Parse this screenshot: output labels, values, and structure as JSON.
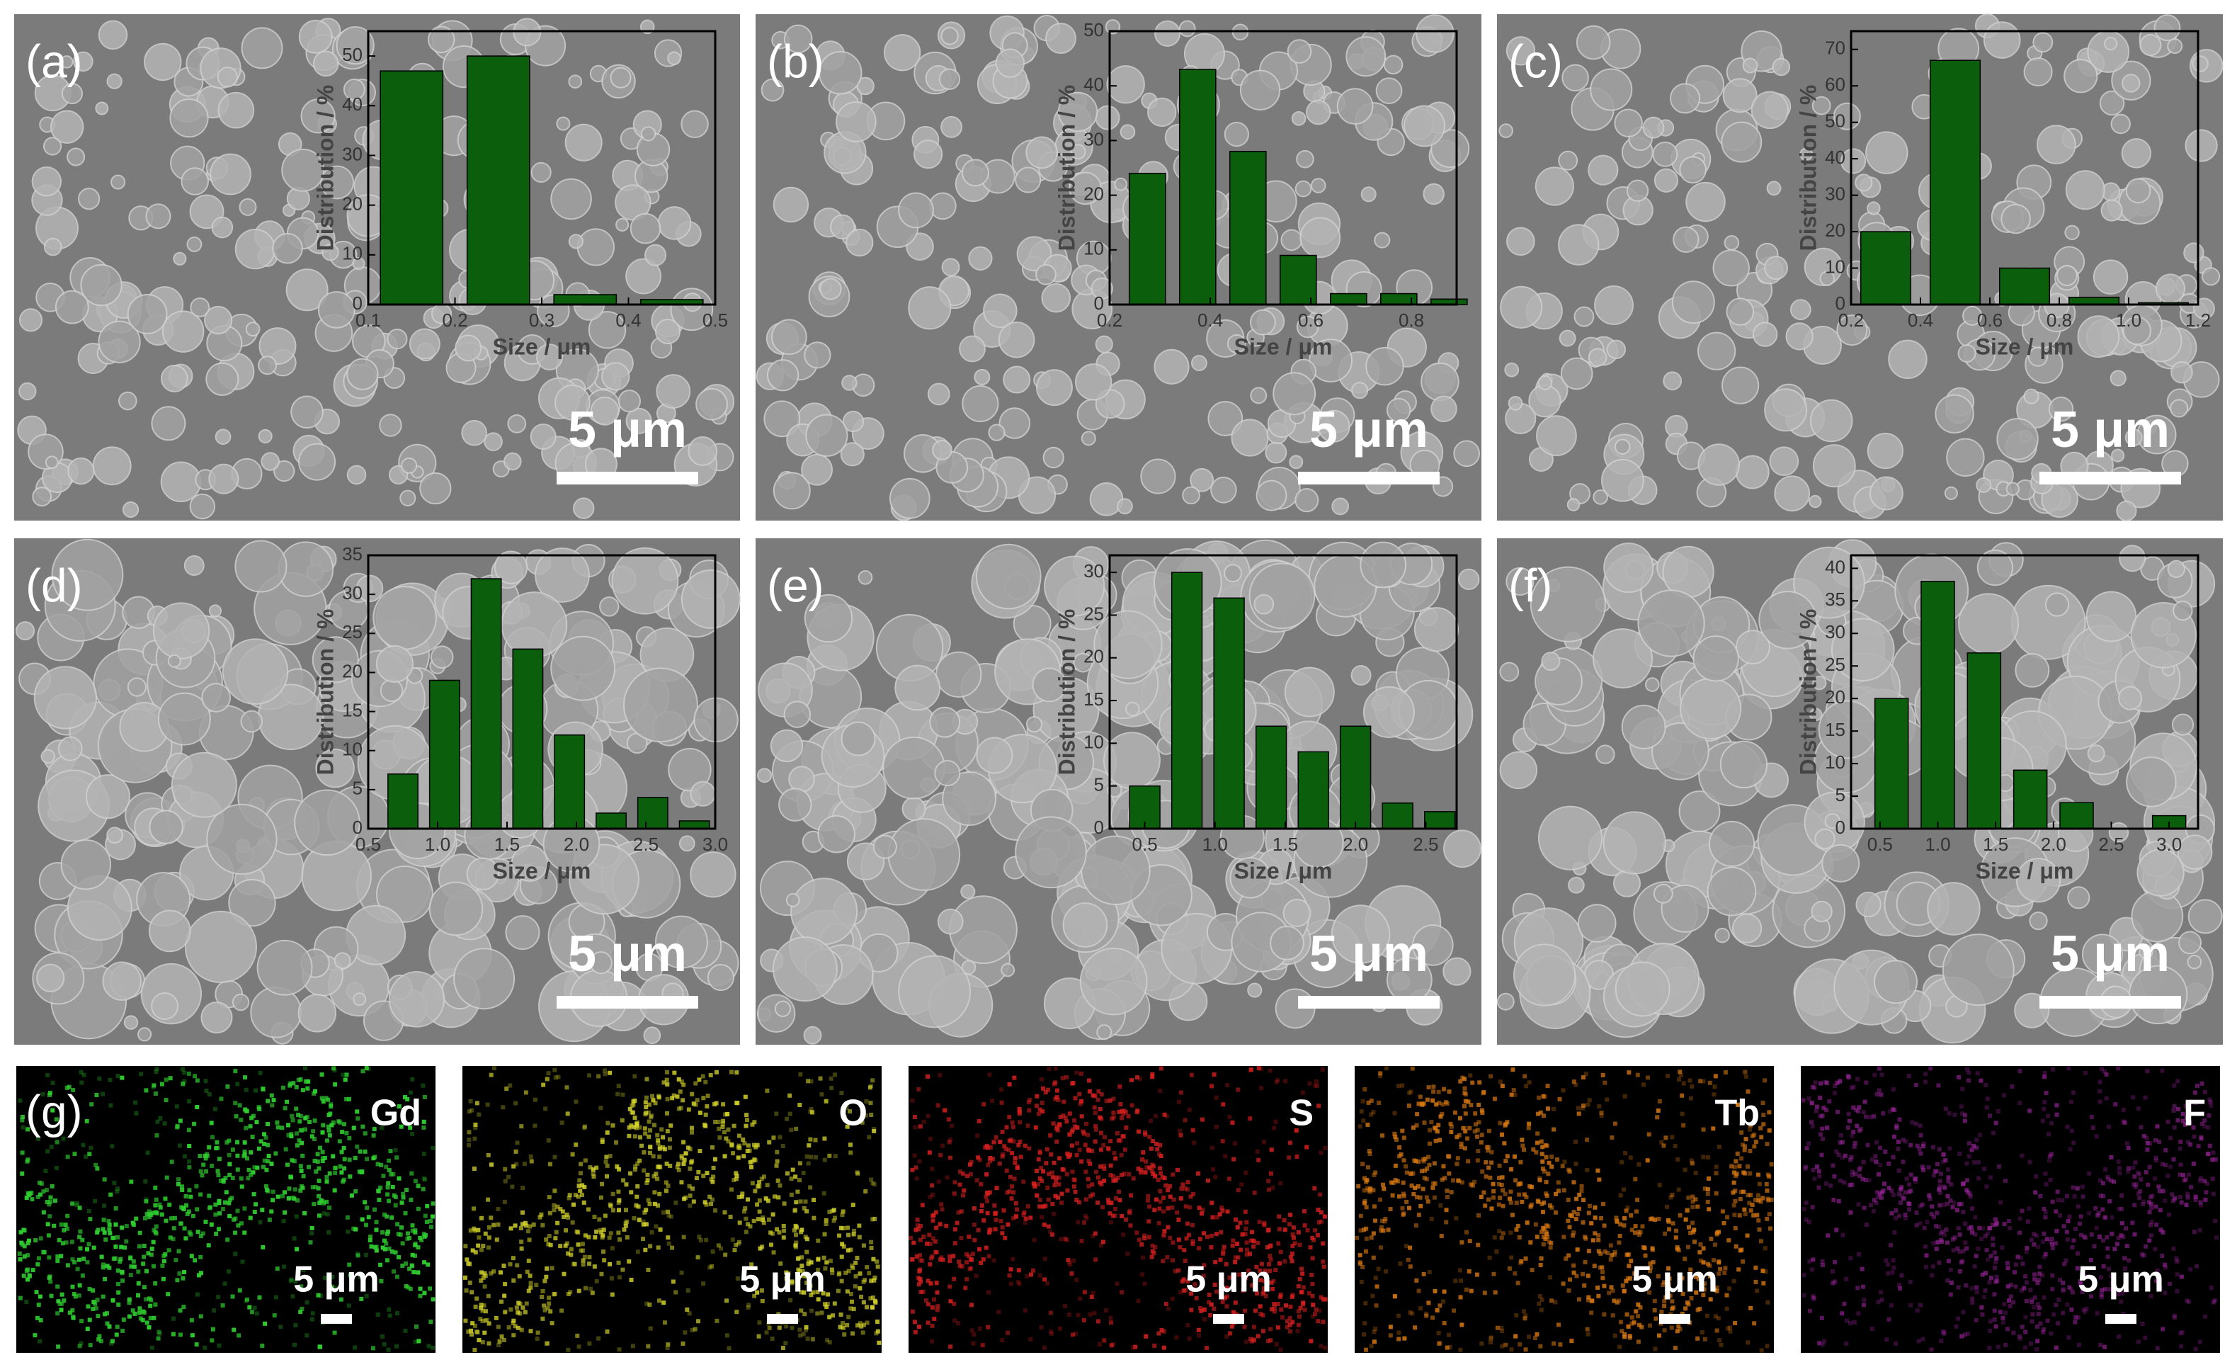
{
  "chart_data": [
    {
      "type": "bar",
      "label": "(a)",
      "scale_bar": "5 μm",
      "xlabel": "Size / μm",
      "ylabel": "Distribution / %",
      "color": "#0b5e0b",
      "x": [
        0.15,
        0.25,
        0.35,
        0.45
      ],
      "values": [
        47,
        50,
        2,
        1
      ],
      "xlim": [
        0.1,
        0.5
      ],
      "xticks": [
        0.1,
        0.2,
        0.3,
        0.4,
        0.5
      ],
      "ylim": [
        0,
        55
      ],
      "yticks": [
        0,
        10,
        20,
        30,
        40,
        50
      ]
    },
    {
      "type": "bar",
      "label": "(b)",
      "scale_bar": "5 μm",
      "xlabel": "Size / μm",
      "ylabel": "Distribution / %",
      "color": "#0b5e0b",
      "x": [
        0.275,
        0.375,
        0.475,
        0.575,
        0.675,
        0.775,
        0.875
      ],
      "values": [
        24,
        43,
        28,
        9,
        2,
        2,
        1
      ],
      "xlim": [
        0.2,
        0.89
      ],
      "xticks": [
        0.2,
        0.4,
        0.6,
        0.8
      ],
      "ylim": [
        0,
        50
      ],
      "yticks": [
        0,
        10,
        20,
        30,
        40,
        50
      ]
    },
    {
      "type": "bar",
      "label": "(c)",
      "scale_bar": "5 μm",
      "xlabel": "Size / μm",
      "ylabel": "Distribution / %",
      "color": "#0b5e0b",
      "x": [
        0.3,
        0.5,
        0.7,
        0.9,
        1.1
      ],
      "values": [
        20,
        67,
        10,
        2,
        0.5
      ],
      "xlim": [
        0.2,
        1.2
      ],
      "xticks": [
        0.2,
        0.4,
        0.6,
        0.8,
        {
          "value": 1,
          "label": "1.0"
        },
        1.2
      ],
      "ylim": [
        0,
        75
      ],
      "yticks": [
        0,
        10,
        20,
        30,
        40,
        50,
        60,
        70
      ]
    },
    {
      "type": "bar",
      "label": "(d)",
      "scale_bar": "5 μm",
      "xlabel": "Size / μm",
      "ylabel": "Distribution / %",
      "color": "#0b5e0b",
      "x": [
        0.75,
        1.05,
        1.35,
        1.65,
        1.95,
        2.25,
        2.55,
        2.85
      ],
      "values": [
        7,
        19,
        32,
        23,
        12,
        2,
        4,
        1
      ],
      "xlim": [
        0.5,
        3.0
      ],
      "xticks": [
        0.5,
        {
          "value": 1,
          "label": "1.0"
        },
        1.5,
        {
          "value": 2,
          "label": "2.0"
        },
        2.5,
        {
          "value": 3,
          "label": "3.0"
        }
      ],
      "ylim": [
        0,
        35
      ],
      "yticks": [
        0,
        5,
        10,
        15,
        20,
        25,
        30,
        35
      ]
    },
    {
      "type": "bar",
      "label": "(e)",
      "scale_bar": "5 μm",
      "xlabel": "Size / μm",
      "ylabel": "Distribution / %",
      "color": "#0b5e0b",
      "x": [
        0.5,
        0.8,
        1.1,
        1.4,
        1.7,
        2.0,
        2.3,
        2.6
      ],
      "values": [
        5,
        30,
        27,
        12,
        9,
        12,
        3,
        2
      ],
      "xlim": [
        0.25,
        2.72
      ],
      "xticks": [
        0.5,
        {
          "value": 1,
          "label": "1.0"
        },
        1.5,
        {
          "value": 2,
          "label": "2.0"
        },
        2.5
      ],
      "ylim": [
        0,
        32
      ],
      "yticks": [
        0,
        5,
        10,
        15,
        20,
        25,
        30
      ]
    },
    {
      "type": "bar",
      "label": "(f)",
      "scale_bar": "5 μm",
      "xlabel": "Size / μm",
      "ylabel": "Distribution / %",
      "color": "#0b5e0b",
      "x": [
        0.6,
        1.0,
        1.4,
        1.8,
        2.2,
        3.0
      ],
      "values": [
        20,
        38,
        27,
        9,
        4,
        2
      ],
      "xlim": [
        0.25,
        3.25
      ],
      "xticks": [
        0.5,
        {
          "value": 1,
          "label": "1.0"
        },
        1.5,
        {
          "value": 2,
          "label": "2.0"
        },
        2.5,
        {
          "value": 3,
          "label": "3.0"
        }
      ],
      "ylim": [
        0,
        42
      ],
      "yticks": [
        0,
        5,
        10,
        15,
        20,
        25,
        30,
        35,
        40
      ]
    }
  ],
  "eds_maps": {
    "label": "(g)",
    "maps": [
      {
        "element": "Gd",
        "scale_bar": "5 μm",
        "color": "#2fcc2f"
      },
      {
        "element": "O",
        "scale_bar": "5 μm",
        "color": "#d6d62c"
      },
      {
        "element": "S",
        "scale_bar": "5 μm",
        "color": "#d41f1f"
      },
      {
        "element": "Tb",
        "scale_bar": "5 μm",
        "color": "#db7a12"
      },
      {
        "element": "F",
        "scale_bar": "5 μm",
        "color": "#a426a4"
      }
    ]
  }
}
